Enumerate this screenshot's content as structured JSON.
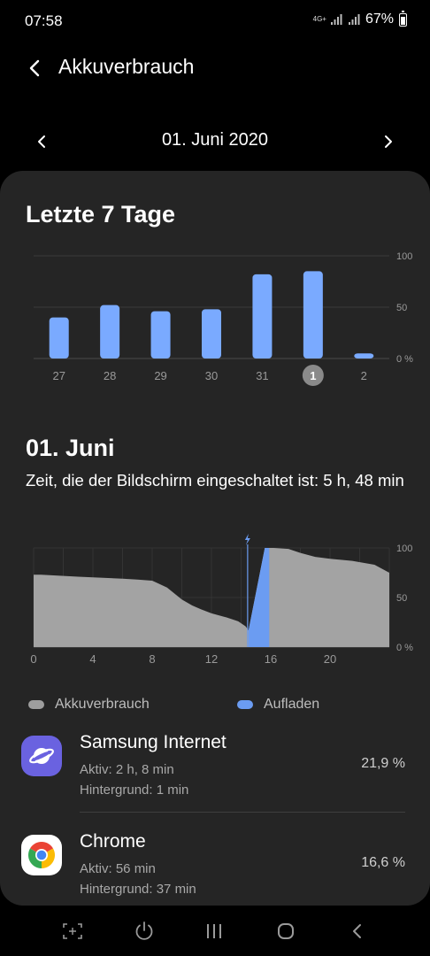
{
  "status": {
    "time": "07:58",
    "network": "4G+",
    "battery": "67%"
  },
  "header": {
    "title": "Akkuverbrauch"
  },
  "date_nav": {
    "label": "01. Juni 2020"
  },
  "week": {
    "title": "Letzte 7 Tage",
    "selected_day": "1"
  },
  "day": {
    "title": "01. Juni",
    "screen_time": "Zeit, die der Bildschirm eingeschaltet ist: 5 h, 48 min"
  },
  "legend": {
    "usage": "Akkuverbrauch",
    "charging": "Aufladen"
  },
  "colors": {
    "bar": "#7aaaff",
    "usage_area": "#a3a3a3",
    "charge_area": "#6b9cf2",
    "selected_day_bg": "#8a8a8a"
  },
  "chart_data": [
    {
      "type": "bar",
      "categories": [
        "27",
        "28",
        "29",
        "30",
        "31",
        "1",
        "2"
      ],
      "values": [
        40,
        52,
        46,
        48,
        82,
        85,
        5
      ],
      "ylim": [
        0,
        100
      ],
      "yticks": [
        "100",
        "50",
        "0 %"
      ],
      "grid": true
    },
    {
      "type": "area",
      "x": [
        0,
        0.5,
        3,
        6,
        7,
        8,
        8.3,
        9,
        10,
        10.7,
        11.3,
        12,
        13,
        13.8,
        14.3,
        14.5,
        15.6,
        15.9,
        16.2,
        17.2,
        18,
        19,
        20,
        21.5,
        23,
        24
      ],
      "y": [
        73,
        73,
        71,
        69,
        68,
        67,
        65,
        60,
        48,
        42,
        38,
        34,
        30,
        26,
        21,
        17,
        100,
        100,
        100,
        99,
        95,
        91,
        89,
        87,
        83,
        75
      ],
      "charging_interval": [
        14.5,
        15.9
      ],
      "xlim": [
        0,
        24
      ],
      "ylim": [
        0,
        100
      ],
      "xticks": [
        "0",
        "4",
        "8",
        "12",
        "16",
        "20"
      ],
      "yticks": [
        "100",
        "50",
        "0 %"
      ]
    }
  ],
  "apps": [
    {
      "name": "Samsung Internet",
      "active": "Aktiv: 2 h, 8 min",
      "background": "Hintergrund: 1 min",
      "percent": "21,9 %",
      "icon": "samsung-internet-icon"
    },
    {
      "name": "Chrome",
      "active": "Aktiv: 56 min",
      "background": "Hintergrund: 37 min",
      "percent": "16,6 %",
      "icon": "chrome-icon"
    }
  ]
}
